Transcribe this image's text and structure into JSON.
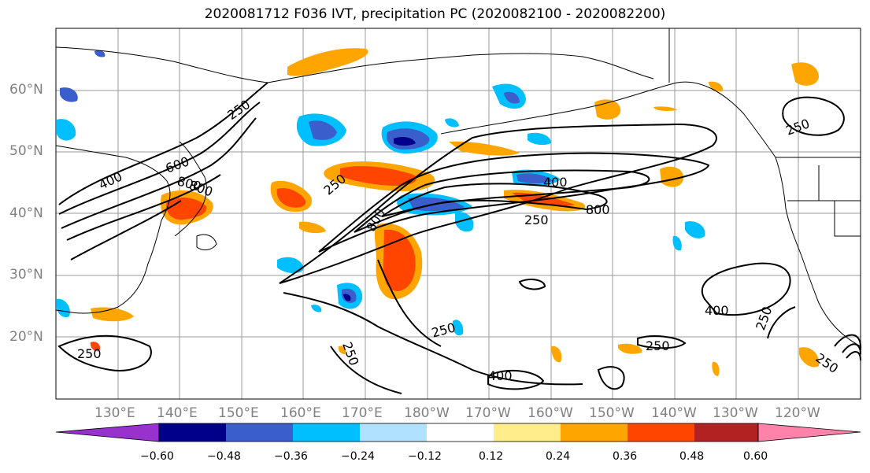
{
  "title": "2020081712 F036 IVT, precipitation PC (2020082100 - 2020082200)",
  "lat_labels": [
    "60°N",
    "50°N",
    "40°N",
    "30°N",
    "20°N"
  ],
  "lon_labels": [
    "130°E",
    "140°E",
    "150°E",
    "160°E",
    "170°E",
    "180°W",
    "170°W",
    "160°W",
    "150°W",
    "140°W",
    "130°W",
    "120°W"
  ],
  "contour_labels": [
    "250",
    "400",
    "600",
    "800",
    "800",
    "250",
    "800",
    "400",
    "800",
    "250",
    "250",
    "400",
    "250",
    "250",
    "250",
    "250",
    "250",
    "400",
    "250"
  ],
  "colorbar": {
    "colors": [
      "#9932cc",
      "#00008b",
      "#3a5fcd",
      "#00bfff",
      "#b0e2ff",
      "#ffffff",
      "#ffec8b",
      "#ffa500",
      "#ff4500",
      "#b22222",
      "#ff82ab"
    ],
    "tick_labels": [
      "−0.60",
      "−0.48",
      "−0.36",
      "−0.24",
      "−0.12",
      "0.12",
      "0.24",
      "0.36",
      "0.48",
      "0.60"
    ]
  }
}
